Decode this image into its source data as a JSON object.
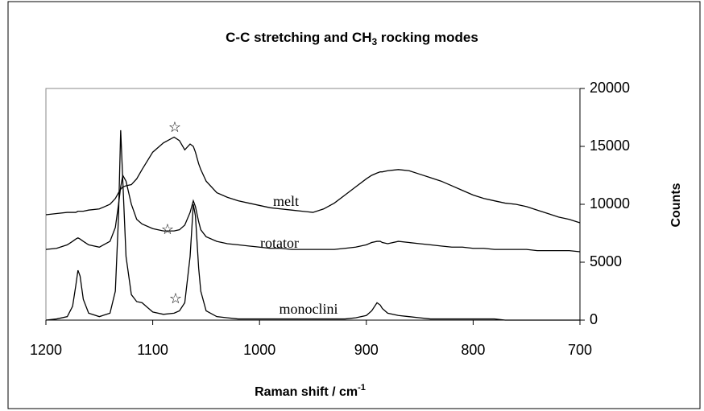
{
  "chart_data": {
    "type": "line",
    "title": [
      "C-C stretching and CH",
      "3",
      " rocking modes"
    ],
    "x_label": [
      "Raman shift / cm",
      "-1"
    ],
    "y_label": "Counts",
    "y_axis_side": "right",
    "x_reversed": true,
    "x": [
      1200,
      1190,
      1180,
      1175,
      1172,
      1170,
      1168,
      1165,
      1160,
      1150,
      1140,
      1135,
      1132,
      1130,
      1128,
      1125,
      1120,
      1115,
      1110,
      1100,
      1090,
      1080,
      1075,
      1070,
      1065,
      1062,
      1060,
      1057,
      1055,
      1050,
      1040,
      1030,
      1020,
      1010,
      1000,
      990,
      980,
      970,
      960,
      950,
      940,
      930,
      920,
      910,
      900,
      895,
      890,
      887,
      885,
      880,
      870,
      860,
      850,
      840,
      830,
      820,
      810,
      800,
      790,
      780,
      770,
      760,
      750,
      740,
      730,
      720,
      710,
      700
    ],
    "series": [
      {
        "name": "melt",
        "color": "#000000",
        "values": [
          9100,
          9200,
          9300,
          9300,
          9300,
          9400,
          9400,
          9400,
          9500,
          9600,
          10000,
          10500,
          11000,
          11300,
          11500,
          11600,
          11700,
          12200,
          13000,
          14500,
          15300,
          15800,
          15500,
          14700,
          15200,
          15000,
          14500,
          13500,
          13000,
          12000,
          11000,
          10600,
          10300,
          10100,
          9900,
          9700,
          9600,
          9500,
          9400,
          9300,
          9600,
          10100,
          10800,
          11500,
          12200,
          12500,
          12700,
          12800,
          12800,
          12900,
          13000,
          12900,
          12600,
          12300,
          12000,
          11600,
          11200,
          10800,
          10500,
          10300,
          10100,
          10000,
          9800,
          9500,
          9200,
          8900,
          8700,
          8400
        ]
      },
      {
        "name": "rotator",
        "color": "#000000",
        "values": [
          6100,
          6200,
          6500,
          6800,
          7000,
          7100,
          7000,
          6800,
          6500,
          6300,
          6800,
          8000,
          10000,
          11500,
          12500,
          12000,
          10000,
          8700,
          8300,
          7900,
          7700,
          7700,
          7800,
          8200,
          9300,
          10300,
          9800,
          8500,
          7800,
          7200,
          6800,
          6600,
          6500,
          6400,
          6300,
          6200,
          6200,
          6100,
          6100,
          6100,
          6100,
          6100,
          6200,
          6300,
          6500,
          6700,
          6800,
          6800,
          6700,
          6600,
          6800,
          6700,
          6600,
          6500,
          6400,
          6300,
          6300,
          6200,
          6200,
          6100,
          6100,
          6100,
          6100,
          6000,
          6000,
          6000,
          6000,
          5900
        ]
      },
      {
        "name": "monoclini",
        "color": "#000000",
        "values": [
          0,
          100,
          300,
          1200,
          3000,
          4300,
          3800,
          1800,
          600,
          300,
          600,
          2500,
          9000,
          16400,
          12000,
          5500,
          2200,
          1600,
          1500,
          700,
          500,
          600,
          800,
          1500,
          5500,
          10000,
          9000,
          4500,
          2500,
          800,
          300,
          200,
          100,
          100,
          100,
          100,
          100,
          100,
          100,
          100,
          100,
          100,
          100,
          200,
          400,
          800,
          1500,
          1300,
          1000,
          600,
          400,
          300,
          200,
          100,
          100,
          100,
          100,
          100,
          100,
          100,
          0,
          0,
          0,
          0,
          0,
          0,
          0,
          0
        ]
      }
    ],
    "xlim": [
      1200,
      700
    ],
    "xticks": [
      1200,
      1100,
      1000,
      900,
      800,
      700
    ],
    "ylim": [
      0,
      20000
    ],
    "yticks": [
      0,
      5000,
      10000,
      15000,
      20000
    ],
    "grid": false
  }
}
